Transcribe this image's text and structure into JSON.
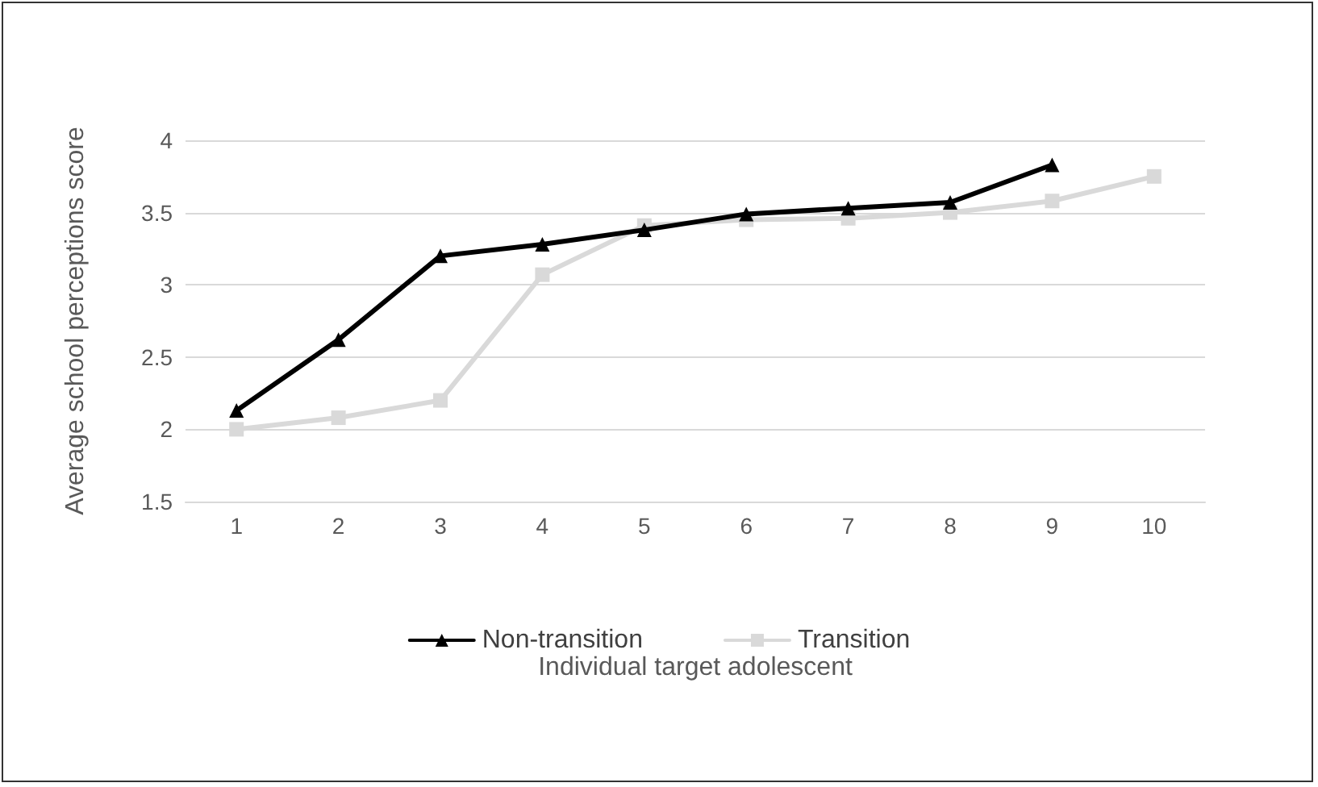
{
  "chart_data": {
    "type": "line",
    "xlabel": "Individual target adolescent",
    "ylabel": "Average school perceptions score",
    "categories": [
      "1",
      "2",
      "3",
      "4",
      "5",
      "6",
      "7",
      "8",
      "9",
      "10"
    ],
    "series": [
      {
        "name": "Non-transition",
        "color": "#000000",
        "marker": "triangle",
        "values": [
          2.13,
          2.62,
          3.2,
          3.28,
          3.38,
          3.49,
          3.53,
          3.57,
          3.83,
          null
        ]
      },
      {
        "name": "Transition",
        "color": "#d9d9d9",
        "marker": "square",
        "values": [
          2.0,
          2.08,
          2.2,
          3.07,
          3.41,
          3.45,
          3.46,
          3.5,
          3.58,
          3.75
        ]
      }
    ],
    "ylim": [
      1.5,
      4
    ],
    "yticks": [
      1.5,
      2,
      2.5,
      3,
      3.5,
      4
    ],
    "grid": "y",
    "legend": "bottom",
    "line_style": "solid"
  }
}
